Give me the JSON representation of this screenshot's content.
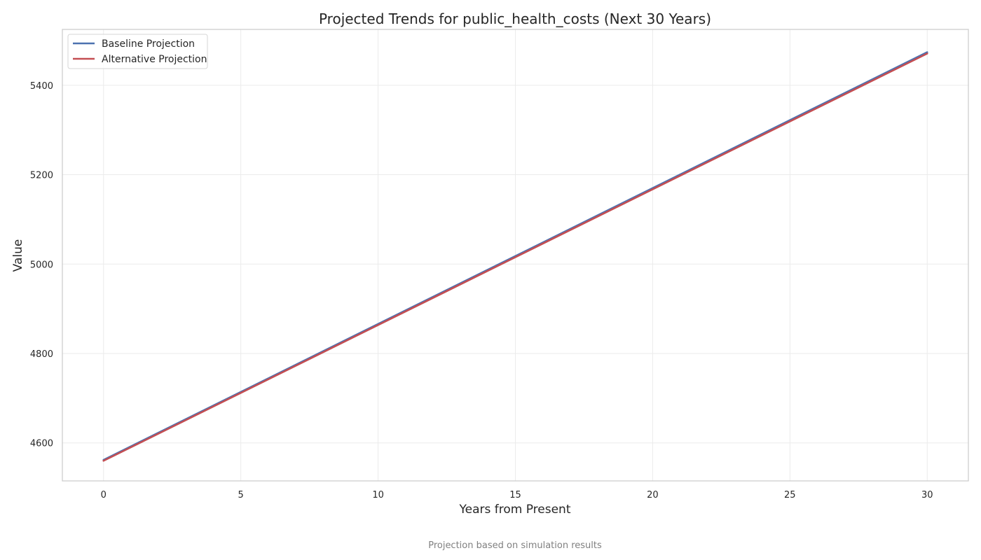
{
  "chart_data": {
    "type": "line",
    "title": "Projected Trends for public_health_costs (Next 30 Years)",
    "xlabel": "Years from Present",
    "ylabel": "Value",
    "caption": "Projection based on simulation results",
    "x": [
      0,
      30
    ],
    "xlim": [
      -1.5,
      31.5
    ],
    "ylim": [
      4515,
      5525
    ],
    "xticks": [
      0,
      5,
      10,
      15,
      20,
      25,
      30
    ],
    "yticks": [
      4600,
      4800,
      5000,
      5200,
      5400
    ],
    "grid": true,
    "legend": "top-left",
    "series": [
      {
        "name": "Baseline Projection",
        "color": "#4c72b0",
        "values": [
          4562,
          5474
        ]
      },
      {
        "name": "Alternative Projection",
        "color": "#c44e52",
        "values": [
          4560,
          5471
        ]
      }
    ]
  }
}
